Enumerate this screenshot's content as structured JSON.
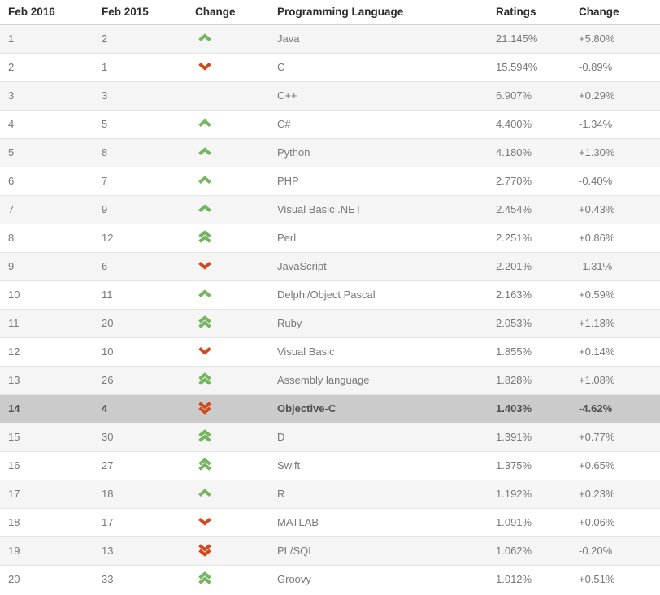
{
  "table": {
    "headers": {
      "feb2016": "Feb 2016",
      "feb2015": "Feb 2015",
      "movement": "Change",
      "language": "Programming Language",
      "ratings": "Ratings",
      "change": "Change"
    },
    "rows": [
      {
        "feb2016": "1",
        "feb2015": "2",
        "movement": "up",
        "language": "Java",
        "ratings": "21.145%",
        "change": "+5.80%",
        "highlighted": false
      },
      {
        "feb2016": "2",
        "feb2015": "1",
        "movement": "down",
        "language": "C",
        "ratings": "15.594%",
        "change": "-0.89%",
        "highlighted": false
      },
      {
        "feb2016": "3",
        "feb2015": "3",
        "movement": "none",
        "language": "C++",
        "ratings": "6.907%",
        "change": "+0.29%",
        "highlighted": false
      },
      {
        "feb2016": "4",
        "feb2015": "5",
        "movement": "up",
        "language": "C#",
        "ratings": "4.400%",
        "change": "-1.34%",
        "highlighted": false
      },
      {
        "feb2016": "5",
        "feb2015": "8",
        "movement": "up",
        "language": "Python",
        "ratings": "4.180%",
        "change": "+1.30%",
        "highlighted": false
      },
      {
        "feb2016": "6",
        "feb2015": "7",
        "movement": "up",
        "language": "PHP",
        "ratings": "2.770%",
        "change": "-0.40%",
        "highlighted": false
      },
      {
        "feb2016": "7",
        "feb2015": "9",
        "movement": "up",
        "language": "Visual Basic .NET",
        "ratings": "2.454%",
        "change": "+0.43%",
        "highlighted": false
      },
      {
        "feb2016": "8",
        "feb2015": "12",
        "movement": "up-double",
        "language": "Perl",
        "ratings": "2.251%",
        "change": "+0.86%",
        "highlighted": false
      },
      {
        "feb2016": "9",
        "feb2015": "6",
        "movement": "down",
        "language": "JavaScript",
        "ratings": "2.201%",
        "change": "-1.31%",
        "highlighted": false
      },
      {
        "feb2016": "10",
        "feb2015": "11",
        "movement": "up",
        "language": "Delphi/Object Pascal",
        "ratings": "2.163%",
        "change": "+0.59%",
        "highlighted": false
      },
      {
        "feb2016": "11",
        "feb2015": "20",
        "movement": "up-double",
        "language": "Ruby",
        "ratings": "2.053%",
        "change": "+1.18%",
        "highlighted": false
      },
      {
        "feb2016": "12",
        "feb2015": "10",
        "movement": "down",
        "language": "Visual Basic",
        "ratings": "1.855%",
        "change": "+0.14%",
        "highlighted": false
      },
      {
        "feb2016": "13",
        "feb2015": "26",
        "movement": "up-double",
        "language": "Assembly language",
        "ratings": "1.828%",
        "change": "+1.08%",
        "highlighted": false
      },
      {
        "feb2016": "14",
        "feb2015": "4",
        "movement": "down-double",
        "language": "Objective-C",
        "ratings": "1.403%",
        "change": "-4.62%",
        "highlighted": true
      },
      {
        "feb2016": "15",
        "feb2015": "30",
        "movement": "up-double",
        "language": "D",
        "ratings": "1.391%",
        "change": "+0.77%",
        "highlighted": false
      },
      {
        "feb2016": "16",
        "feb2015": "27",
        "movement": "up-double",
        "language": "Swift",
        "ratings": "1.375%",
        "change": "+0.65%",
        "highlighted": false
      },
      {
        "feb2016": "17",
        "feb2015": "18",
        "movement": "up",
        "language": "R",
        "ratings": "1.192%",
        "change": "+0.23%",
        "highlighted": false
      },
      {
        "feb2016": "18",
        "feb2015": "17",
        "movement": "down",
        "language": "MATLAB",
        "ratings": "1.091%",
        "change": "+0.06%",
        "highlighted": false
      },
      {
        "feb2016": "19",
        "feb2015": "13",
        "movement": "down-double",
        "language": "PL/SQL",
        "ratings": "1.062%",
        "change": "-0.20%",
        "highlighted": false
      },
      {
        "feb2016": "20",
        "feb2015": "33",
        "movement": "up-double",
        "language": "Groovy",
        "ratings": "1.012%",
        "change": "+0.51%",
        "highlighted": false
      }
    ]
  },
  "icons": {
    "up": "chevron-up-icon",
    "down": "chevron-down-icon",
    "up-double": "double-chevron-up-icon",
    "down-double": "double-chevron-down-icon"
  },
  "colors": {
    "up_arrow": "#74b55e",
    "down_arrow": "#d14a1f",
    "row_alt_bg": "#f5f5f5",
    "highlight_bg": "#cbcbcb",
    "header_text": "#2b2b2b",
    "body_text": "#787878"
  }
}
